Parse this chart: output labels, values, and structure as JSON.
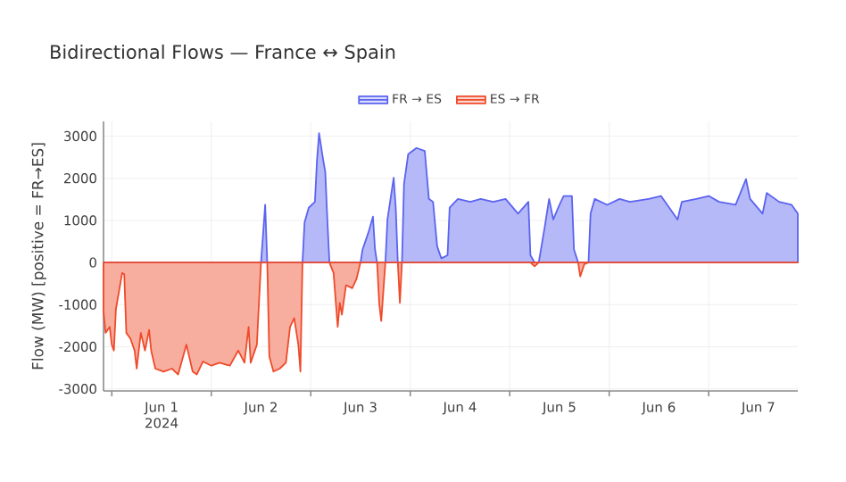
{
  "chart_data": {
    "type": "area",
    "title": "Bidirectional Flows — France ↔ Spain",
    "ylabel": "Flow (MW)  [positive = FR→ES]",
    "x": [
      "2024-05-31T22:00",
      "2024-05-31T22:30",
      "2024-05-31T23:30",
      "2024-06-01T00:00",
      "2024-06-01T00:30",
      "2024-06-01T01:00",
      "2024-06-01T01:30",
      "2024-06-01T02:30",
      "2024-06-01T03:00",
      "2024-06-01T03:30",
      "2024-06-01T04:30",
      "2024-06-01T05:30",
      "2024-06-01T06:00",
      "2024-06-01T07:00",
      "2024-06-01T08:00",
      "2024-06-01T09:00",
      "2024-06-01T09:30",
      "2024-06-01T10:30",
      "2024-06-01T12:30",
      "2024-06-01T14:30",
      "2024-06-01T16:00",
      "2024-06-01T18:00",
      "2024-06-01T19:30",
      "2024-06-01T20:30",
      "2024-06-01T22:00",
      "2024-06-02T00:00",
      "2024-06-02T02:00",
      "2024-06-02T04:30",
      "2024-06-02T06:30",
      "2024-06-02T08:00",
      "2024-06-02T09:00",
      "2024-06-02T09:30",
      "2024-06-02T11:00",
      "2024-06-02T11:30",
      "2024-06-02T12:00",
      "2024-06-02T13:00",
      "2024-06-02T13:30",
      "2024-06-02T14:00",
      "2024-06-02T15:00",
      "2024-06-02T16:30",
      "2024-06-02T18:00",
      "2024-06-02T19:00",
      "2024-06-02T20:00",
      "2024-06-02T21:00",
      "2024-06-02T21:30",
      "2024-06-02T22:00",
      "2024-06-02T22:30",
      "2024-06-02T23:30",
      "2024-06-03T01:00",
      "2024-06-03T01:30",
      "2024-06-03T02:00",
      "2024-06-03T03:00",
      "2024-06-03T03:30",
      "2024-06-03T04:00",
      "2024-06-03T04:30",
      "2024-06-03T05:30",
      "2024-06-03T06:30",
      "2024-06-03T07:00",
      "2024-06-03T07:30",
      "2024-06-03T08:30",
      "2024-06-03T10:00",
      "2024-06-03T11:00",
      "2024-06-03T12:00",
      "2024-06-03T12:30",
      "2024-06-03T14:00",
      "2024-06-03T15:00",
      "2024-06-03T15:30",
      "2024-06-03T16:00",
      "2024-06-03T16:30",
      "2024-06-03T17:00",
      "2024-06-03T18:00",
      "2024-06-03T18:30",
      "2024-06-03T20:00",
      "2024-06-03T20:30",
      "2024-06-03T21:00",
      "2024-06-03T21:30",
      "2024-06-03T22:00",
      "2024-06-03T22:30",
      "2024-06-03T23:30",
      "2024-06-04T01:30",
      "2024-06-04T03:30",
      "2024-06-04T04:30",
      "2024-06-04T05:30",
      "2024-06-04T06:30",
      "2024-06-04T07:30",
      "2024-06-04T09:00",
      "2024-06-04T09:30",
      "2024-06-04T11:30",
      "2024-06-04T14:30",
      "2024-06-04T17:00",
      "2024-06-04T20:00",
      "2024-06-04T23:00",
      "2024-06-05T02:00",
      "2024-06-05T04:30",
      "2024-06-05T05:00",
      "2024-06-05T06:00",
      "2024-06-05T07:00",
      "2024-06-05T08:30",
      "2024-06-05T09:30",
      "2024-06-05T10:30",
      "2024-06-05T12:00",
      "2024-06-05T13:00",
      "2024-06-05T15:00",
      "2024-06-05T15:30",
      "2024-06-05T16:30",
      "2024-06-05T17:00",
      "2024-06-05T18:00",
      "2024-06-05T19:00",
      "2024-06-05T19:30",
      "2024-06-05T20:30",
      "2024-06-05T23:30",
      "2024-06-06T02:30",
      "2024-06-06T05:00",
      "2024-06-06T09:30",
      "2024-06-06T12:30",
      "2024-06-06T14:00",
      "2024-06-06T16:30",
      "2024-06-06T17:30",
      "2024-06-06T21:00",
      "2024-06-07T00:00",
      "2024-06-07T02:30",
      "2024-06-07T06:30",
      "2024-06-07T09:00",
      "2024-06-07T10:00",
      "2024-06-07T13:00",
      "2024-06-07T14:00",
      "2024-06-07T17:00",
      "2024-06-07T20:00",
      "2024-06-07T21:30"
    ],
    "series": [
      {
        "name": "FR → ES",
        "color": "#5b63f0",
        "values": [
          0,
          0,
          0,
          0,
          0,
          0,
          0,
          0,
          0,
          0,
          0,
          0,
          0,
          0,
          0,
          0,
          0,
          0,
          0,
          0,
          0,
          0,
          0,
          0,
          0,
          0,
          0,
          0,
          0,
          0,
          0,
          0,
          0,
          0,
          0,
          1370,
          0,
          0,
          0,
          0,
          0,
          0,
          0,
          0,
          0,
          0,
          950,
          1300,
          1440,
          2430,
          3070,
          2430,
          2150,
          1020,
          0,
          0,
          0,
          0,
          0,
          0,
          0,
          0,
          0,
          310,
          740,
          1090,
          310,
          0,
          0,
          0,
          0,
          1020,
          2010,
          1300,
          0,
          0,
          0,
          1870,
          2570,
          2720,
          2650,
          1510,
          1440,
          380,
          100,
          170,
          1300,
          1510,
          1440,
          1510,
          1440,
          1510,
          1160,
          1440,
          170,
          0,
          0,
          880,
          1510,
          1020,
          1370,
          1580,
          1580,
          310,
          0,
          0,
          0,
          0,
          1160,
          1510,
          1370,
          1510,
          1440,
          1510,
          1580,
          1370,
          1020,
          1440,
          1510,
          1580,
          1440,
          1370,
          1980,
          1510,
          1160,
          1650,
          1440,
          1370,
          1160
        ]
      },
      {
        "name": "ES → FR",
        "color": "#ef4a2a",
        "values": [
          -1170,
          -1670,
          -1530,
          -1950,
          -2090,
          -1100,
          -820,
          -250,
          -280,
          -1670,
          -1810,
          -2090,
          -2520,
          -1670,
          -2090,
          -1600,
          -2090,
          -2520,
          -2590,
          -2520,
          -2660,
          -1950,
          -2590,
          -2660,
          -2350,
          -2450,
          -2380,
          -2450,
          -2090,
          -2380,
          -1530,
          -2380,
          -1950,
          -960,
          0,
          0,
          0,
          -2230,
          -2590,
          -2520,
          -2380,
          -1530,
          -1320,
          -1950,
          -2590,
          0,
          0,
          0,
          0,
          0,
          0,
          0,
          0,
          0,
          0,
          -250,
          -1530,
          -960,
          -1240,
          -540,
          -610,
          -400,
          0,
          0,
          0,
          0,
          0,
          0,
          -960,
          -1390,
          0,
          0,
          0,
          0,
          0,
          -960,
          0,
          0,
          0,
          0,
          0,
          0,
          0,
          0,
          0,
          0,
          0,
          0,
          0,
          0,
          0,
          0,
          0,
          0,
          0,
          -90,
          0,
          0,
          0,
          0,
          0,
          0,
          0,
          0,
          0,
          -330,
          -40,
          0,
          0,
          0,
          0,
          0,
          0,
          0,
          0,
          0,
          0,
          0,
          0,
          0,
          0,
          0,
          0,
          0,
          0,
          0,
          0,
          0,
          0
        ]
      }
    ],
    "xlim": [
      "2024-05-31T22:00",
      "2024-06-07T21:30"
    ],
    "xticks": [
      {
        "value": "2024-06-01T00:00",
        "label": null
      },
      {
        "value": "2024-06-01T12:00",
        "label": "Jun 1 2024"
      },
      {
        "value": "2024-06-02T00:00",
        "label": null
      },
      {
        "value": "2024-06-02T12:00",
        "label": "Jun 2"
      },
      {
        "value": "2024-06-03T00:00",
        "label": null
      },
      {
        "value": "2024-06-03T12:00",
        "label": "Jun 3"
      },
      {
        "value": "2024-06-04T00:00",
        "label": null
      },
      {
        "value": "2024-06-04T12:00",
        "label": "Jun 4"
      },
      {
        "value": "2024-06-05T00:00",
        "label": null
      },
      {
        "value": "2024-06-05T12:00",
        "label": "Jun 5"
      },
      {
        "value": "2024-06-06T00:00",
        "label": null
      },
      {
        "value": "2024-06-06T12:00",
        "label": "Jun 6"
      },
      {
        "value": "2024-06-07T00:00",
        "label": null
      },
      {
        "value": "2024-06-07T12:00",
        "label": "Jun 7"
      }
    ],
    "ylim": [
      -3050,
      3350
    ],
    "yticks": [
      -3000,
      -2000,
      -1000,
      0,
      1000,
      2000,
      3000
    ],
    "grid": true,
    "legend": "top"
  }
}
